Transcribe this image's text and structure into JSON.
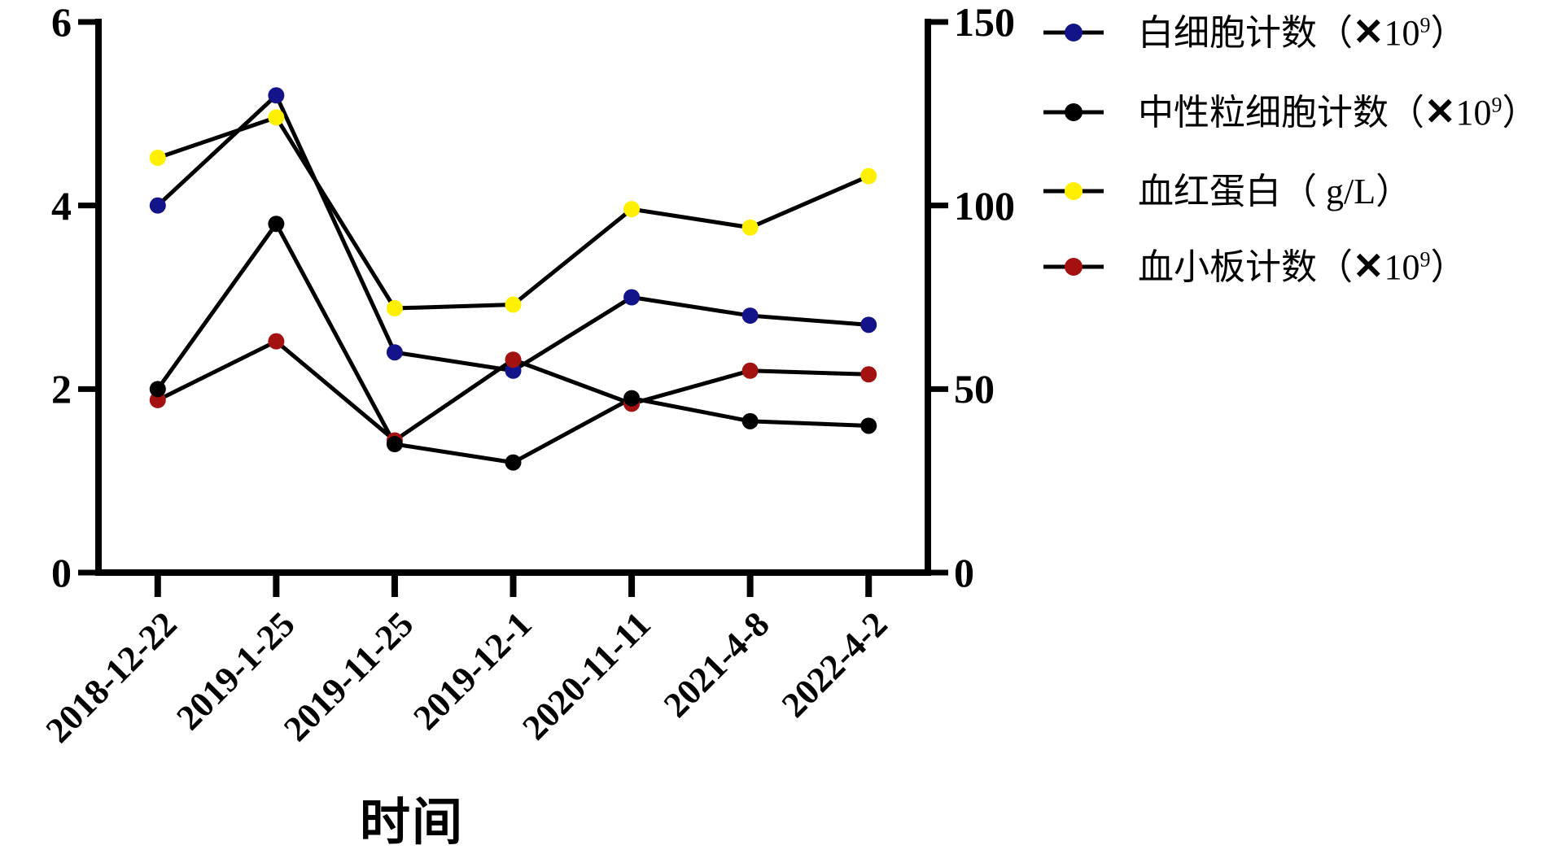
{
  "chart_data": {
    "type": "line",
    "title": "",
    "xlabel": "时间",
    "categories": [
      "2018-12-22",
      "2019-1-25",
      "2019-11-25",
      "2019-12-1",
      "2020-11-11",
      "2021-4-8",
      "2022-4-2"
    ],
    "x_tick_rotation": 45,
    "grid": false,
    "legend_position": "right-top",
    "axes": {
      "left": {
        "ticks": [
          "0",
          "2",
          "4",
          "6"
        ],
        "min": 0,
        "max": 6
      },
      "right": {
        "ticks": [
          "0",
          "50",
          "100",
          "150"
        ],
        "min": 0,
        "max": 150
      }
    },
    "series": [
      {
        "name": "白细胞计数（✕10⁹）",
        "axis": "left",
        "marker_color": "#14148A",
        "line_color": "#000000",
        "values": [
          4.0,
          5.2,
          2.4,
          2.2,
          3.0,
          2.8,
          2.7
        ]
      },
      {
        "name": "中性粒细胞计数（✕10⁹）",
        "axis": "left",
        "marker_color": "#000000",
        "line_color": "#000000",
        "values": [
          2.0,
          3.8,
          1.4,
          1.2,
          1.9,
          1.65,
          1.6
        ]
      },
      {
        "name": "血红蛋白（ g/L）",
        "axis": "right",
        "marker_color": "#FFF000",
        "line_color": "#000000",
        "values": [
          113,
          124,
          72,
          73,
          99,
          94,
          108
        ]
      },
      {
        "name": "血小板计数（✕10⁹）",
        "axis": "right",
        "marker_color": "#A31111",
        "line_color": "#000000",
        "values": [
          47,
          63,
          36,
          58,
          46,
          55,
          54
        ]
      }
    ],
    "draw_order": [
      2,
      0,
      3,
      1
    ]
  },
  "legend": {
    "items": [
      {
        "pre": "白细胞计数（",
        "mult": "✕",
        "base": "10",
        "sup": "9",
        "post": "）",
        "color": "#14148A"
      },
      {
        "pre": "中性粒细胞计数（",
        "mult": "✕",
        "base": "10",
        "sup": "9",
        "post": "）",
        "color": "#000000"
      },
      {
        "pre": "血红蛋白（ g/L",
        "mult": "",
        "base": "",
        "sup": "",
        "post": "）",
        "color": "#FFF000"
      },
      {
        "pre": "血小板计数（",
        "mult": "✕",
        "base": "10",
        "sup": "9",
        "post": "）",
        "color": "#A31111"
      }
    ]
  }
}
